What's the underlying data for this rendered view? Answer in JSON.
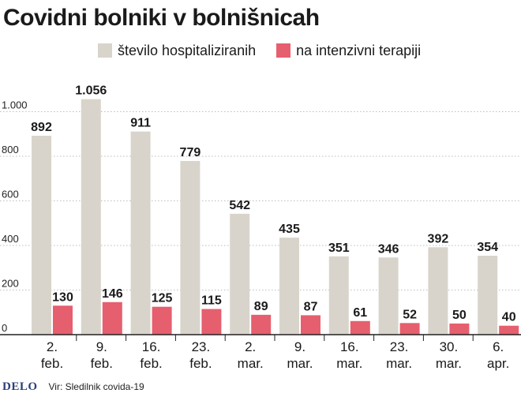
{
  "colors": {
    "hospitalized": "#d9d4cb",
    "icu": "#e65f6e",
    "axis": "#222222",
    "grid": "#bdbdbd",
    "logo": "#2a3f7a"
  },
  "footer": {
    "logo": "DELO",
    "source": "Vir: Sledilnik covida-19"
  },
  "chart_data": {
    "type": "bar",
    "title": "Covidni bolniki v bolnišnicah",
    "legend_position": "top",
    "grid": true,
    "ylim": [
      0,
      1100
    ],
    "y_ticks": [
      {
        "value": 0,
        "label": "0"
      },
      {
        "value": 200,
        "label": "200"
      },
      {
        "value": 400,
        "label": "400"
      },
      {
        "value": 600,
        "label": "600"
      },
      {
        "value": 800,
        "label": "800"
      },
      {
        "value": 1000,
        "label": "1.000"
      }
    ],
    "categories": [
      {
        "day": "2.",
        "month": "feb."
      },
      {
        "day": "9.",
        "month": "feb."
      },
      {
        "day": "16.",
        "month": "feb."
      },
      {
        "day": "23.",
        "month": "feb."
      },
      {
        "day": "2.",
        "month": "mar."
      },
      {
        "day": "9.",
        "month": "mar."
      },
      {
        "day": "16.",
        "month": "mar."
      },
      {
        "day": "23.",
        "month": "mar."
      },
      {
        "day": "30.",
        "month": "mar."
      },
      {
        "day": "6.",
        "month": "apr."
      }
    ],
    "series": [
      {
        "name": "število hospitaliziranih",
        "values": [
          892,
          1056,
          911,
          779,
          542,
          435,
          351,
          346,
          392,
          354
        ],
        "labels": [
          "892",
          "1.056",
          "911",
          "779",
          "542",
          "435",
          "351",
          "346",
          "392",
          "354"
        ]
      },
      {
        "name": "na intenzivni terapiji",
        "values": [
          130,
          146,
          125,
          115,
          89,
          87,
          61,
          52,
          50,
          40
        ],
        "labels": [
          "130",
          "146",
          "125",
          "115",
          "89",
          "87",
          "61",
          "52",
          "50",
          "40"
        ]
      }
    ]
  }
}
